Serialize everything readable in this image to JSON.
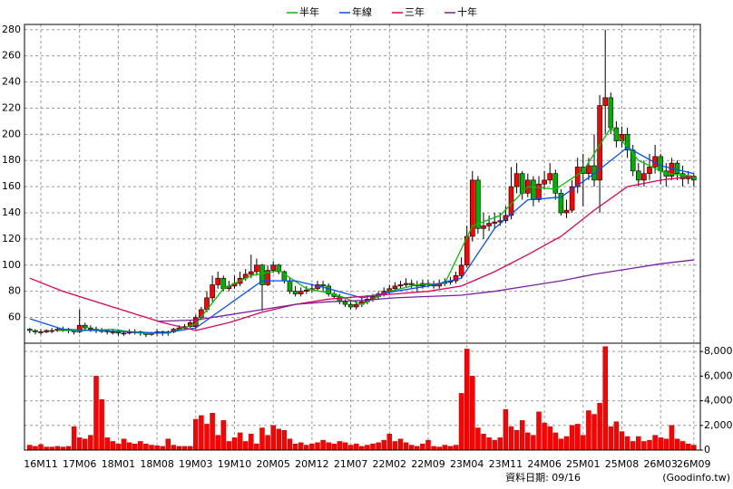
{
  "chart_data": {
    "type": "candlestick",
    "categories": [
      null,
      null,
      "16M11",
      null,
      null,
      null,
      null,
      null,
      null,
      "17M06",
      null,
      null,
      null,
      null,
      null,
      null,
      "18M01",
      null,
      null,
      null,
      null,
      null,
      null,
      "18M08",
      null,
      null,
      null,
      null,
      null,
      null,
      "19M03",
      null,
      null,
      null,
      null,
      null,
      null,
      "19M10",
      null,
      null,
      null,
      null,
      null,
      null,
      "20M05",
      null,
      null,
      null,
      null,
      null,
      null,
      "20M12",
      null,
      null,
      null,
      null,
      null,
      null,
      "21M07",
      null,
      null,
      null,
      null,
      null,
      null,
      "22M02",
      null,
      null,
      null,
      null,
      null,
      null,
      "22M09",
      null,
      null,
      null,
      null,
      null,
      null,
      "23M04",
      null,
      null,
      null,
      null,
      null,
      null,
      "23M11",
      null,
      null,
      null,
      null,
      null,
      null,
      "24M06",
      null,
      null,
      null,
      null,
      null,
      null,
      "25M01",
      null,
      null,
      null,
      null,
      null,
      null,
      "25M08",
      null,
      null,
      null,
      null,
      null,
      null,
      "26M03",
      null,
      null,
      null,
      null,
      null,
      "26M09"
    ],
    "open": [
      51,
      50,
      49,
      49,
      50,
      50,
      51,
      51,
      50,
      49,
      54,
      52,
      51,
      50,
      50,
      49,
      49,
      48,
      48,
      49,
      49,
      48,
      47,
      48,
      49,
      48,
      49,
      51,
      52,
      53,
      53,
      60,
      66,
      75,
      85,
      90,
      82,
      84,
      86,
      90,
      93,
      95,
      100,
      85,
      96,
      100,
      95,
      88,
      80,
      78,
      80,
      81,
      82,
      85,
      84,
      78,
      76,
      72,
      70,
      68,
      70,
      72,
      74,
      76,
      78,
      80,
      82,
      84,
      85,
      86,
      85,
      84,
      86,
      85,
      84,
      86,
      87,
      88,
      92,
      100,
      122,
      165,
      128,
      130,
      132,
      133,
      134,
      138,
      160,
      170,
      155,
      165,
      150,
      162,
      165,
      170,
      155,
      140,
      142,
      160,
      175,
      170,
      176,
      165,
      222,
      228,
      205,
      195,
      200,
      188,
      172,
      165,
      170,
      175,
      183,
      172,
      168,
      178,
      170,
      166,
      168
    ],
    "high": [
      52,
      51,
      51,
      51,
      52,
      52,
      53,
      52,
      51,
      66,
      56,
      54,
      53,
      52,
      51,
      51,
      50,
      50,
      51,
      51,
      50,
      49,
      49,
      51,
      50,
      50,
      52,
      54,
      55,
      58,
      62,
      68,
      80,
      92,
      95,
      92,
      88,
      92,
      95,
      97,
      108,
      105,
      101,
      100,
      103,
      101,
      96,
      90,
      84,
      83,
      84,
      86,
      88,
      88,
      86,
      80,
      78,
      74,
      72,
      73,
      75,
      77,
      78,
      80,
      83,
      85,
      87,
      88,
      90,
      89,
      88,
      89,
      89,
      88,
      89,
      90,
      91,
      95,
      106,
      130,
      172,
      168,
      140,
      138,
      140,
      140,
      145,
      175,
      178,
      172,
      170,
      168,
      168,
      172,
      178,
      173,
      158,
      150,
      165,
      182,
      185,
      182,
      200,
      230,
      280,
      232,
      210,
      206,
      205,
      192,
      178,
      180,
      185,
      192,
      185,
      178,
      182,
      180,
      176,
      172,
      170
    ],
    "low": [
      48,
      47,
      47,
      48,
      48,
      49,
      49,
      48,
      47,
      48,
      50,
      49,
      48,
      48,
      47,
      47,
      46,
      46,
      47,
      47,
      46,
      45,
      46,
      46,
      46,
      46,
      48,
      50,
      51,
      52,
      51,
      58,
      64,
      72,
      82,
      80,
      80,
      82,
      84,
      88,
      90,
      92,
      65,
      84,
      94,
      93,
      86,
      78,
      76,
      76,
      78,
      79,
      80,
      80,
      76,
      74,
      70,
      68,
      66,
      66,
      68,
      70,
      72,
      74,
      76,
      78,
      80,
      82,
      83,
      82,
      80,
      82,
      83,
      82,
      82,
      84,
      85,
      86,
      90,
      98,
      118,
      124,
      120,
      126,
      128,
      130,
      132,
      135,
      155,
      150,
      152,
      145,
      148,
      158,
      162,
      150,
      138,
      136,
      140,
      155,
      145,
      165,
      160,
      140,
      200,
      200,
      190,
      190,
      182,
      168,
      160,
      160,
      165,
      170,
      162,
      160,
      165,
      165,
      160,
      162,
      160
    ],
    "close": [
      50,
      49,
      49,
      50,
      50,
      51,
      51,
      50,
      49,
      54,
      52,
      51,
      50,
      50,
      49,
      49,
      48,
      48,
      49,
      49,
      48,
      47,
      48,
      49,
      48,
      49,
      51,
      52,
      53,
      56,
      60,
      66,
      75,
      85,
      90,
      82,
      84,
      86,
      90,
      93,
      95,
      100,
      85,
      96,
      100,
      95,
      88,
      80,
      78,
      80,
      81,
      82,
      85,
      84,
      78,
      76,
      72,
      70,
      68,
      70,
      72,
      74,
      76,
      78,
      80,
      82,
      84,
      85,
      86,
      85,
      84,
      86,
      85,
      84,
      86,
      87,
      88,
      92,
      100,
      122,
      165,
      128,
      130,
      132,
      133,
      134,
      138,
      160,
      170,
      155,
      165,
      150,
      162,
      165,
      170,
      155,
      140,
      142,
      160,
      175,
      170,
      176,
      165,
      222,
      228,
      205,
      195,
      200,
      188,
      172,
      165,
      170,
      175,
      183,
      172,
      168,
      178,
      170,
      166,
      168,
      165
    ],
    "up_color": "#ff0000",
    "down_color": "#00b000",
    "ylim": [
      41,
      284
    ],
    "yticks": [
      60,
      80,
      100,
      120,
      140,
      160,
      180,
      200,
      220,
      240,
      260,
      280
    ],
    "grid": true,
    "series": [
      {
        "name": "半年",
        "color": "#00c000",
        "x": [
          5,
          10,
          15,
          20,
          25,
          30,
          35,
          40,
          45,
          50,
          55,
          60,
          65,
          70,
          75,
          80,
          85,
          90,
          95,
          100,
          105,
          110,
          115,
          120
        ],
        "values": [
          50,
          50,
          51,
          48,
          48,
          55,
          82,
          92,
          96,
          82,
          78,
          70,
          80,
          85,
          86,
          130,
          138,
          160,
          158,
          172,
          205,
          180,
          170,
          168
        ]
      },
      {
        "name": "年線",
        "color": "#0050ff",
        "x": [
          0,
          6,
          12,
          18,
          24,
          30,
          36,
          42,
          48,
          54,
          60,
          66,
          72,
          78,
          84,
          90,
          96,
          102,
          108,
          114,
          120
        ],
        "values": [
          59,
          51,
          50,
          49,
          48,
          52,
          70,
          88,
          88,
          82,
          75,
          80,
          84,
          90,
          128,
          150,
          152,
          170,
          190,
          176,
          170
        ]
      },
      {
        "name": "三年",
        "color": "#e0005a",
        "x": [
          0,
          6,
          12,
          18,
          24,
          30,
          36,
          42,
          48,
          54,
          60,
          66,
          72,
          78,
          84,
          90,
          96,
          102,
          108,
          114,
          120
        ],
        "values": [
          90,
          80,
          72,
          64,
          56,
          50,
          56,
          64,
          70,
          74,
          76,
          78,
          80,
          84,
          95,
          108,
          122,
          142,
          160,
          165,
          168
        ]
      },
      {
        "name": "十年",
        "color": "#7a1fa0",
        "x": [
          23,
          30,
          36,
          42,
          48,
          54,
          60,
          66,
          72,
          78,
          84,
          90,
          96,
          102,
          108,
          114,
          120
        ],
        "values": [
          57,
          58,
          62,
          66,
          70,
          72,
          73,
          75,
          76,
          77,
          80,
          84,
          88,
          93,
          97,
          101,
          104
        ]
      }
    ],
    "volume": {
      "color": "#ff0000",
      "values": [
        400,
        300,
        450,
        250,
        250,
        300,
        250,
        300,
        1900,
        1000,
        900,
        1200,
        6000,
        4100,
        1000,
        700,
        500,
        900,
        600,
        500,
        700,
        500,
        400,
        350,
        300,
        900,
        400,
        300,
        300,
        300,
        2500,
        2800,
        2100,
        3000,
        1200,
        2400,
        700,
        1000,
        1400,
        700,
        1300,
        500,
        1800,
        1200,
        2000,
        1700,
        1600,
        900,
        500,
        600,
        400,
        500,
        600,
        800,
        600,
        500,
        700,
        600,
        400,
        500,
        300,
        400,
        500,
        600,
        800,
        1300,
        700,
        900,
        600,
        400,
        300,
        500,
        800,
        300,
        250,
        400,
        300,
        400,
        4600,
        8200,
        6000,
        1800,
        1300,
        1000,
        800,
        1000,
        3300,
        1900,
        1600,
        2400,
        1400,
        1200,
        3100,
        2200,
        1900,
        1400,
        900,
        1100,
        2000,
        2100,
        1200,
        3200,
        2900,
        3800,
        8400,
        1900,
        2300,
        1500,
        1100,
        700,
        1100,
        700,
        800,
        1200,
        1000,
        900,
        2000,
        900,
        700,
        500,
        400
      ],
      "ylim": [
        0,
        8600
      ],
      "yticks": [
        0,
        {
          "value": 2000,
          "label": "2,000"
        },
        {
          "value": 4000,
          "label": "4,000"
        },
        {
          "value": 6000,
          "label": "6,000"
        },
        {
          "value": 8000,
          "label": "8,000"
        }
      ]
    },
    "footer": {
      "date": "資料日期: 09/16",
      "source": "(Goodinfo.tw)"
    }
  }
}
